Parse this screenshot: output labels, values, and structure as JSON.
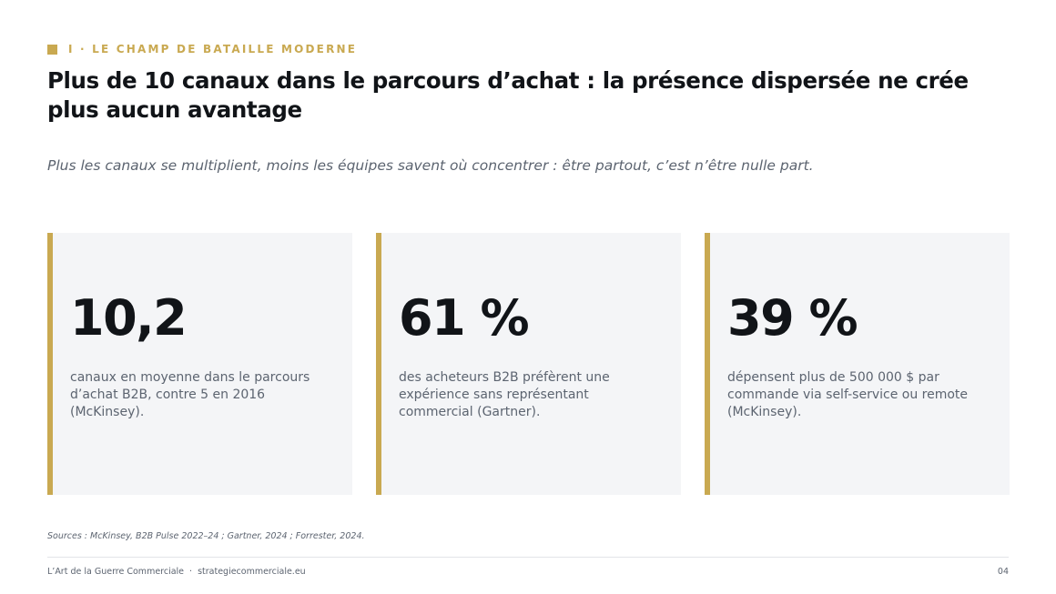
{
  "section": {
    "label": "I · LE CHAMP DE BATAILLE MODERNE",
    "accent_color": "#c9a951"
  },
  "title": "Plus de 10 canaux dans le parcours d’achat : la présence dispersée ne crée plus aucun avantage",
  "subtitle": "Plus les canaux se multiplient, moins les équipes savent où concentrer : être partout, c’est n’être nulle part.",
  "stats": [
    {
      "value": "10,2",
      "description": "canaux en moyenne dans le parcours d’achat B2B, contre 5 en 2016 (McKinsey)."
    },
    {
      "value": "61 %",
      "description": "des acheteurs B2B préfèrent une expérience sans représentant commercial (Gartner)."
    },
    {
      "value": "39 %",
      "description": "dépensent plus de 500 000 $ par commande via self-service ou remote (McKinsey)."
    }
  ],
  "sources": "Sources : McKinsey, B2B Pulse 2022–24 ; Gartner, 2024 ; Forrester, 2024.",
  "footer": {
    "brand": "L’Art de la Guerre Commerciale",
    "separator": "·",
    "website": "strategiecommerciale.eu",
    "page_number": "04"
  }
}
